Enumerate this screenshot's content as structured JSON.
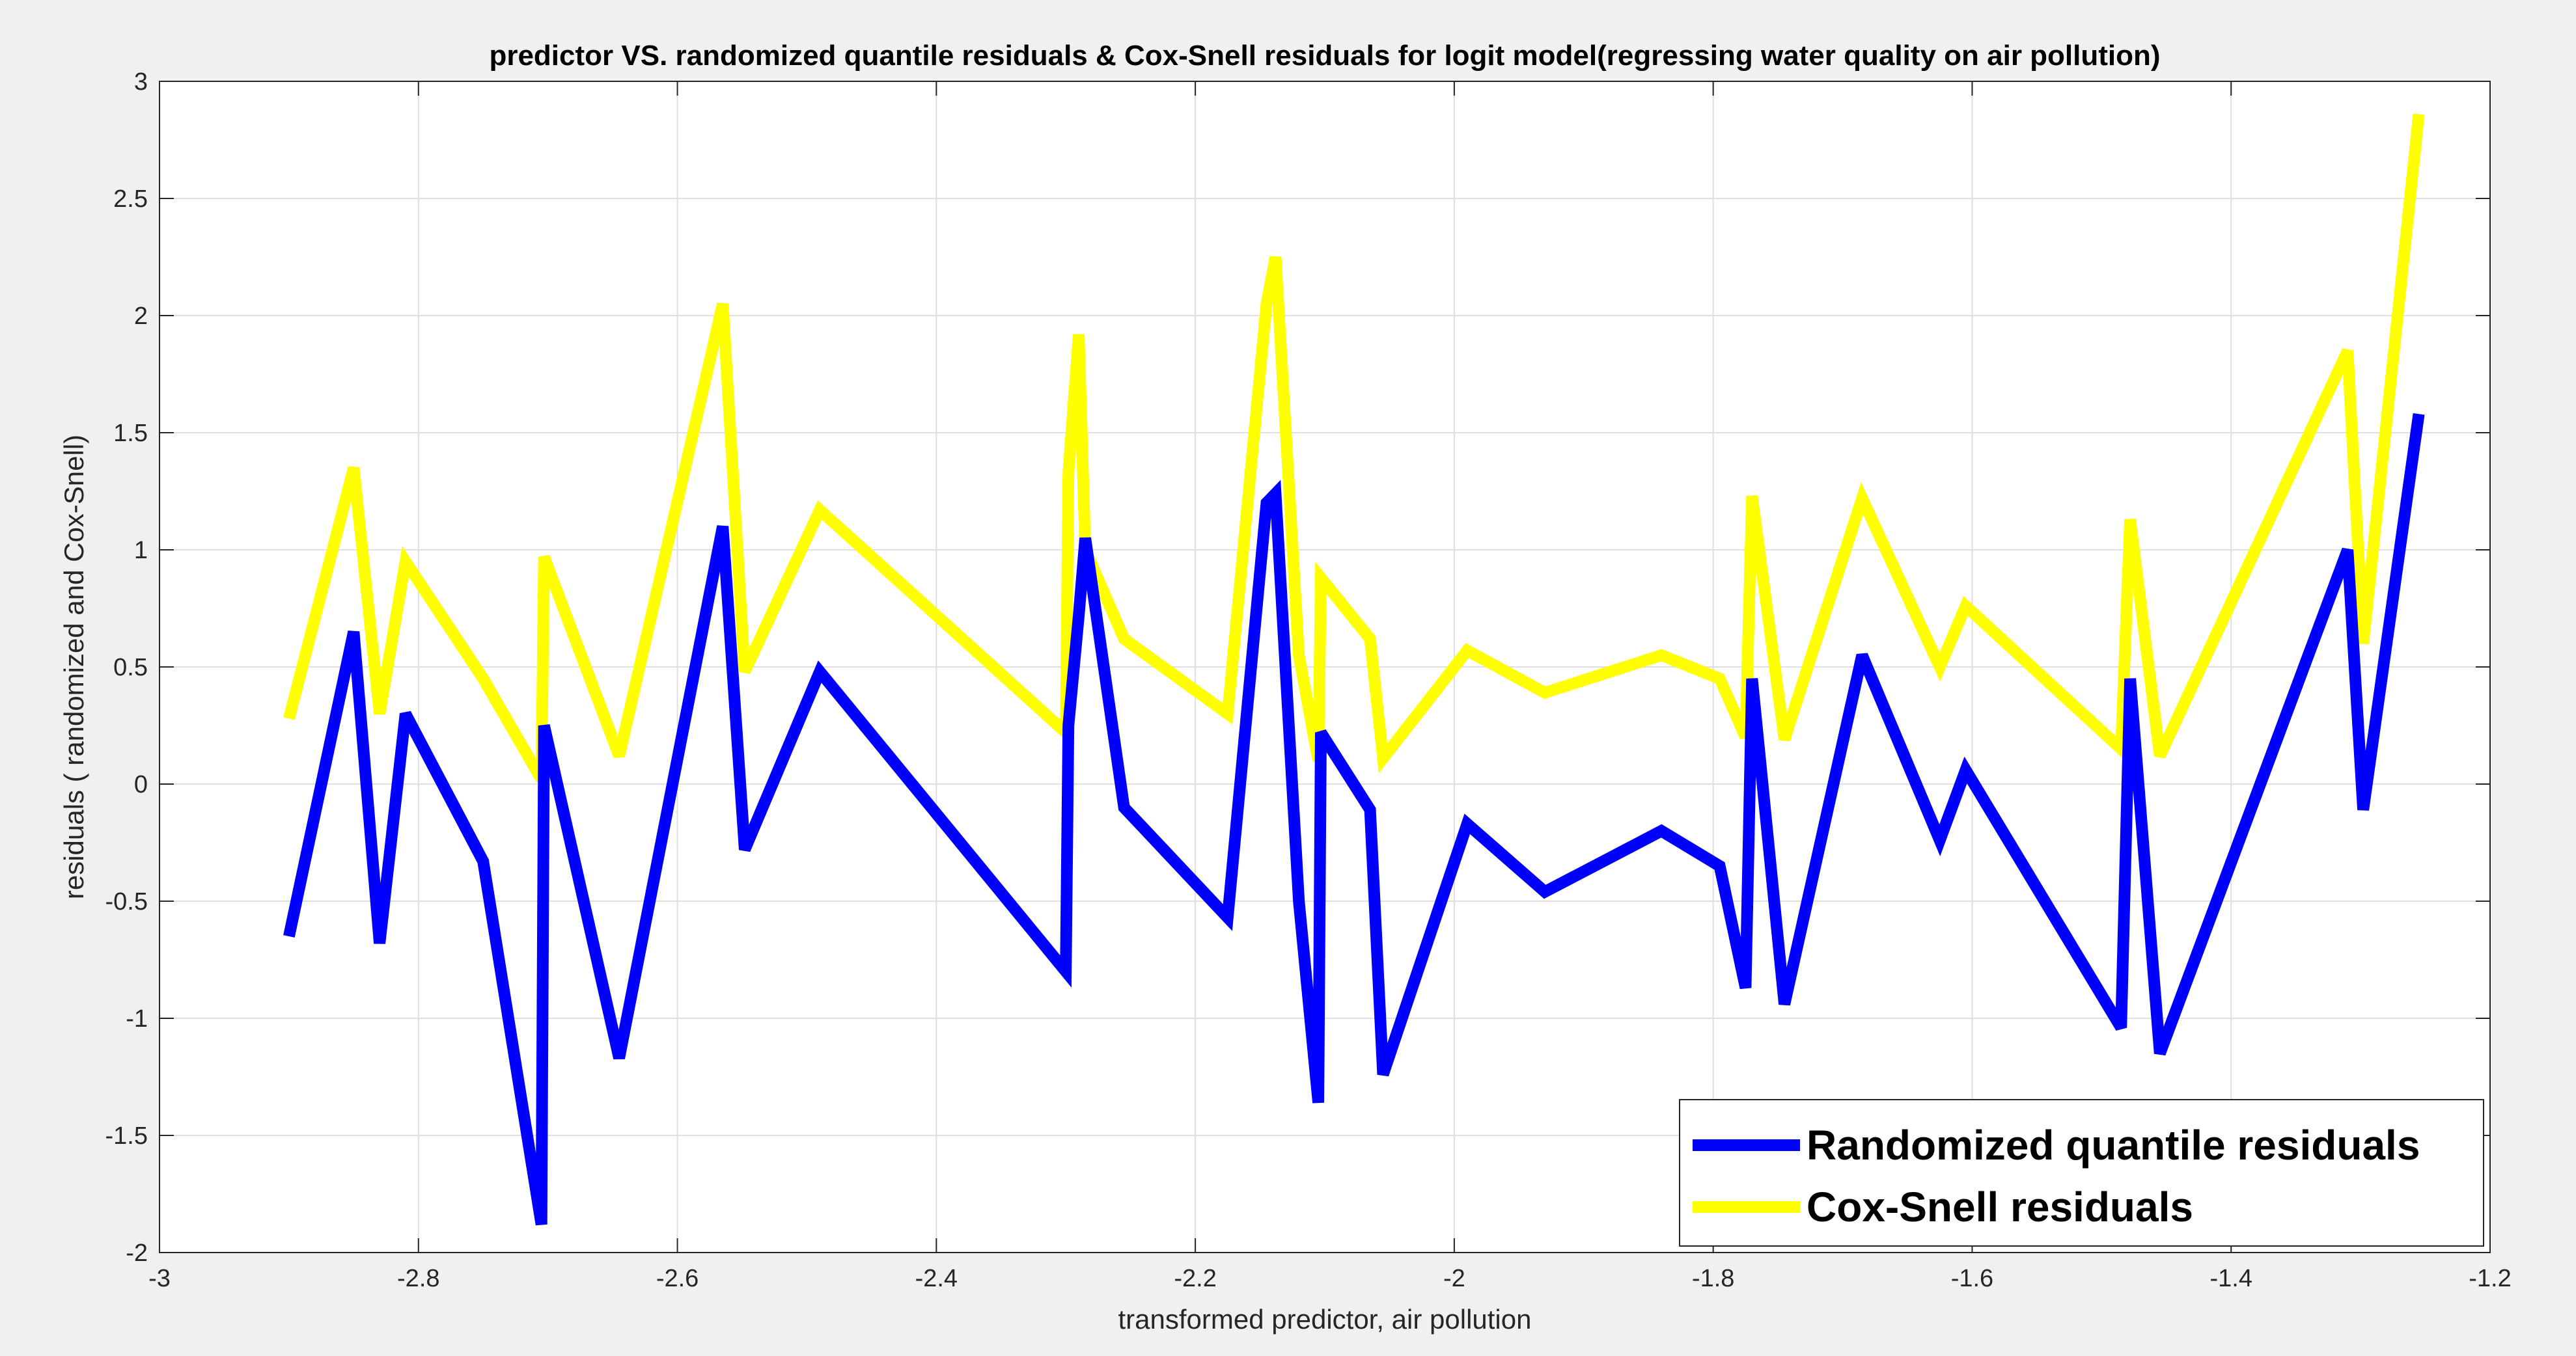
{
  "chart_data": {
    "type": "line",
    "title": "predictor VS. randomized quantile residuals & Cox-Snell residuals for logit model(regressing water quality on air pollution)",
    "xlabel": "transformed predictor, air pollution",
    "ylabel": "residuals ( randomized and Cox-Snell)",
    "xlim": [
      -3,
      -1.2
    ],
    "ylim": [
      -2,
      3
    ],
    "xticks": [
      -3,
      -2.8,
      -2.6,
      -2.4,
      -2.2,
      -2,
      -1.8,
      -1.6,
      -1.4,
      -1.2
    ],
    "xtick_labels": [
      "-3",
      "-2.8",
      "-2.6",
      "-2.4",
      "-2.2",
      "-2",
      "-1.8",
      "-1.6",
      "-1.4",
      "-1.2"
    ],
    "yticks": [
      -2,
      -1.5,
      -1,
      -0.5,
      0,
      0.5,
      1,
      1.5,
      2,
      2.5,
      3
    ],
    "ytick_labels": [
      "-2",
      "-1.5",
      "-1",
      "-0.5",
      "0",
      "0.5",
      "1",
      "1.5",
      "2",
      "2.5",
      "3"
    ],
    "grid": true,
    "legend_position": "bottom-right",
    "series": [
      {
        "name": "Randomized quantile residuals",
        "color": "#0000ff",
        "x": [
          -2.9,
          -2.85,
          -2.83,
          -2.81,
          -2.75,
          -2.705,
          -2.703,
          -2.645,
          -2.565,
          -2.548,
          -2.49,
          -2.3,
          -2.298,
          -2.29,
          -2.285,
          -2.255,
          -2.175,
          -2.145,
          -2.138,
          -2.12,
          -2.105,
          -2.103,
          -2.065,
          -2.055,
          -1.99,
          -1.93,
          -1.84,
          -1.795,
          -1.775,
          -1.77,
          -1.745,
          -1.685,
          -1.625,
          -1.605,
          -1.485,
          -1.478,
          -1.455,
          -1.31,
          -1.298,
          -1.255
        ],
        "y": [
          -0.65,
          0.65,
          -0.68,
          0.3,
          -0.33,
          -1.88,
          0.25,
          -1.17,
          1.1,
          -0.28,
          0.48,
          -0.8,
          0.25,
          0.72,
          1.05,
          -0.1,
          -0.57,
          1.2,
          1.24,
          -0.5,
          -1.36,
          0.22,
          -0.11,
          -1.24,
          -0.17,
          -0.46,
          -0.2,
          -0.35,
          -0.87,
          0.45,
          -0.94,
          0.55,
          -0.24,
          0.06,
          -1.04,
          0.45,
          -1.15,
          1.0,
          -0.11,
          1.58
        ]
      },
      {
        "name": "Cox-Snell residuals",
        "color": "#ffff00",
        "x": [
          -2.9,
          -2.85,
          -2.83,
          -2.81,
          -2.75,
          -2.705,
          -2.703,
          -2.645,
          -2.565,
          -2.548,
          -2.49,
          -2.3,
          -2.298,
          -2.29,
          -2.285,
          -2.255,
          -2.175,
          -2.145,
          -2.138,
          -2.12,
          -2.105,
          -2.103,
          -2.065,
          -2.055,
          -1.99,
          -1.93,
          -1.84,
          -1.795,
          -1.775,
          -1.77,
          -1.745,
          -1.685,
          -1.625,
          -1.605,
          -1.485,
          -1.478,
          -1.455,
          -1.31,
          -1.298,
          -1.255
        ],
        "y": [
          0.28,
          1.35,
          0.3,
          0.95,
          0.45,
          0.02,
          0.97,
          0.12,
          2.05,
          0.48,
          1.17,
          0.22,
          1.33,
          1.92,
          1.0,
          0.62,
          0.3,
          2.05,
          2.25,
          0.55,
          0.1,
          0.88,
          0.62,
          0.11,
          0.57,
          0.39,
          0.55,
          0.45,
          0.2,
          1.23,
          0.19,
          1.22,
          0.5,
          0.76,
          0.15,
          1.13,
          0.12,
          1.85,
          0.6,
          2.86
        ]
      }
    ]
  }
}
